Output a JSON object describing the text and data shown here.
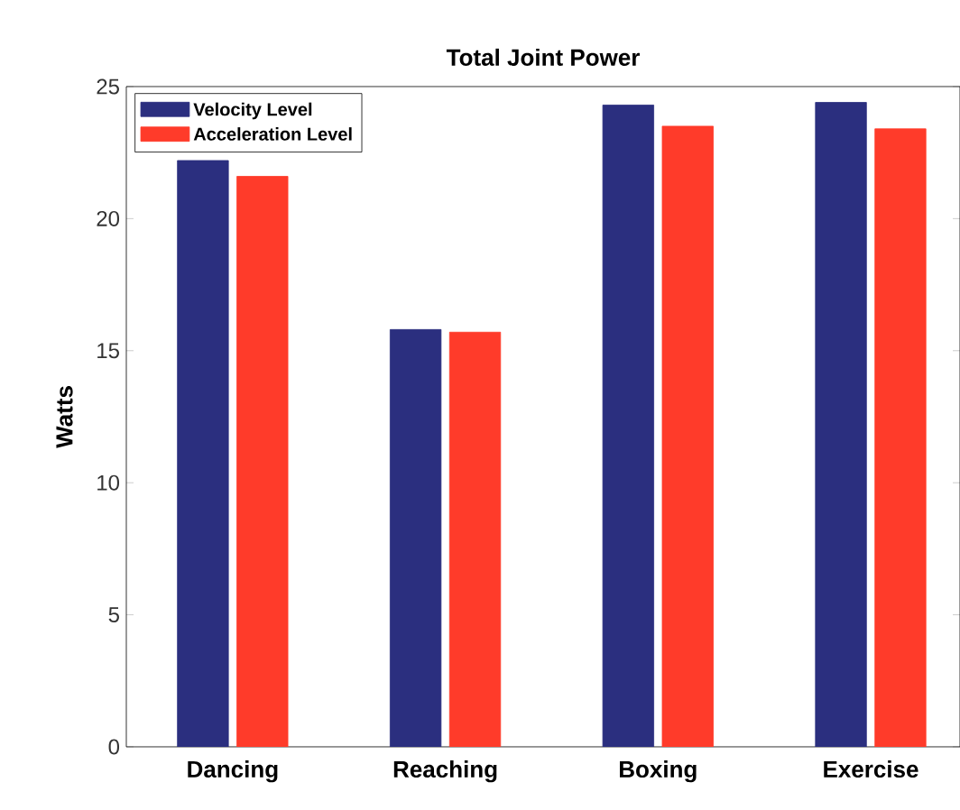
{
  "chart_data": {
    "type": "bar",
    "title": "Total Joint Power",
    "ylabel": "Watts",
    "categories": [
      "Dancing",
      "Reaching",
      "Boxing",
      "Exercise"
    ],
    "series": [
      {
        "name": "Velocity Level",
        "color": "#2b2f7f",
        "values": [
          22.2,
          15.8,
          24.3,
          24.4
        ]
      },
      {
        "name": "Acceleration Level",
        "color": "#ff3b2a",
        "values": [
          21.6,
          15.7,
          23.5,
          23.4
        ]
      }
    ],
    "ylim": [
      0,
      25
    ],
    "yticks": [
      0,
      5,
      10,
      15,
      20,
      25
    ],
    "legend": "top left"
  }
}
